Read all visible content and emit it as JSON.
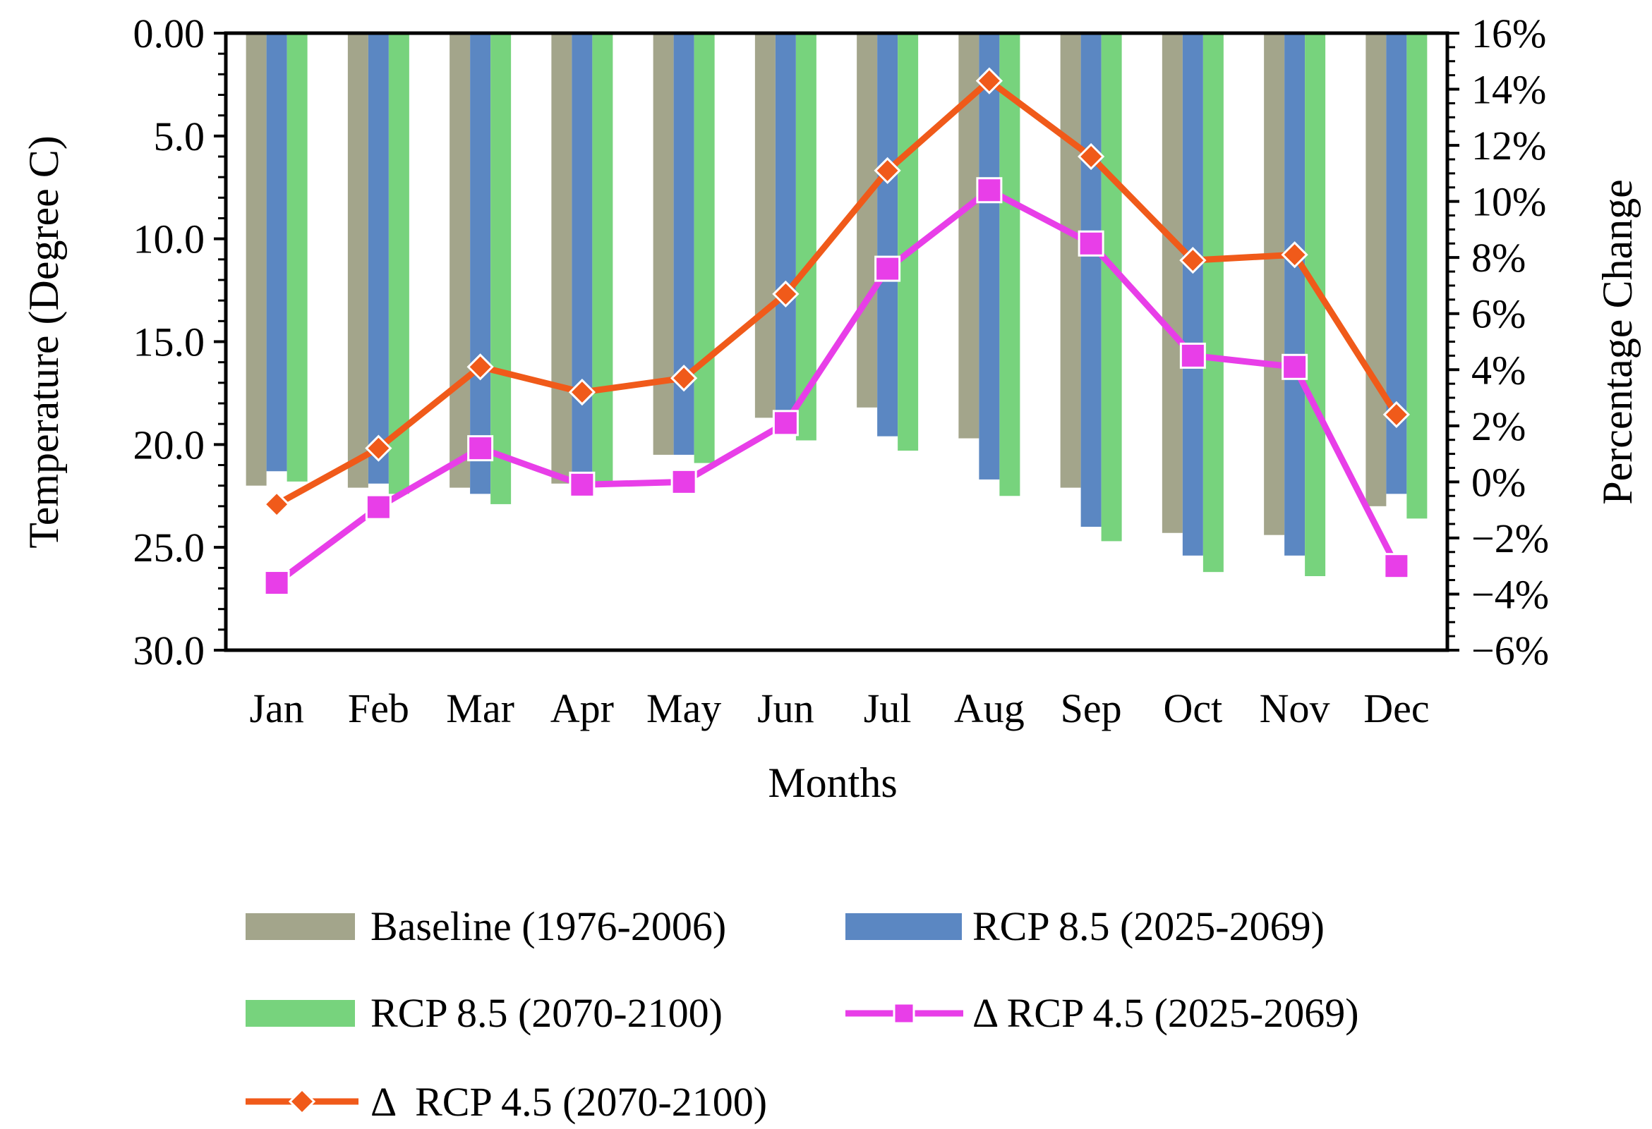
{
  "chart_data": {
    "type": "bar",
    "categories": [
      "Jan",
      "Feb",
      "Mar",
      "Apr",
      "May",
      "Jun",
      "Jul",
      "Aug",
      "Sep",
      "Oct",
      "Nov",
      "Dec"
    ],
    "xlabel": "Months",
    "ylabel": "Temperature (Degree C)",
    "y2label": "Percentage Change",
    "ylim": [
      0,
      30
    ],
    "y_inverted": true,
    "y_ticks": [
      "0.00",
      "5.0",
      "10.0",
      "15.0",
      "20.0",
      "25.0",
      "30.0"
    ],
    "y_tick_values": [
      0,
      5,
      10,
      15,
      20,
      25,
      30
    ],
    "y2lim": [
      -6,
      16
    ],
    "y2_ticks": [
      "16%",
      "14%",
      "12%",
      "10%",
      "8%",
      "6%",
      "4%",
      "2%",
      "0%",
      "−2%",
      "−4%",
      "−6%"
    ],
    "y2_tick_values": [
      16,
      14,
      12,
      10,
      8,
      6,
      4,
      2,
      0,
      -2,
      -4,
      -6
    ],
    "bar_series": [
      {
        "name": "Baseline (1976-2006)",
        "color": "#a3a58b",
        "values": [
          22.0,
          22.1,
          22.1,
          21.9,
          20.5,
          18.7,
          18.2,
          19.7,
          22.1,
          24.3,
          24.4,
          23.0
        ]
      },
      {
        "name": "RCP 8.5 (2025-2069)",
        "color": "#5b87c2",
        "values": [
          21.3,
          21.9,
          22.4,
          21.9,
          20.5,
          18.6,
          19.6,
          21.7,
          24.0,
          25.4,
          25.4,
          22.4
        ]
      },
      {
        "name": "RCP 8.5 (2070-2100)",
        "color": "#77d37d",
        "values": [
          21.8,
          22.4,
          22.9,
          22.0,
          20.9,
          19.8,
          20.3,
          22.5,
          24.7,
          26.2,
          26.4,
          23.6
        ]
      }
    ],
    "line_series": [
      {
        "name": "Δ RCP 4.5 (2025-2069)",
        "color": "#e83ee8",
        "marker": "square",
        "axis": "right",
        "values": [
          -3.6,
          -0.9,
          1.2,
          -0.1,
          0.0,
          2.1,
          7.6,
          10.4,
          8.5,
          4.5,
          4.1,
          -3.0
        ]
      },
      {
        "name": "Δ  RCP 4.5 (2070-2100)",
        "color": "#f05a1a",
        "marker": "diamond",
        "axis": "right",
        "values": [
          -0.8,
          1.2,
          4.1,
          3.2,
          3.7,
          6.7,
          11.1,
          14.3,
          11.6,
          7.9,
          8.1,
          2.4
        ]
      }
    ]
  }
}
